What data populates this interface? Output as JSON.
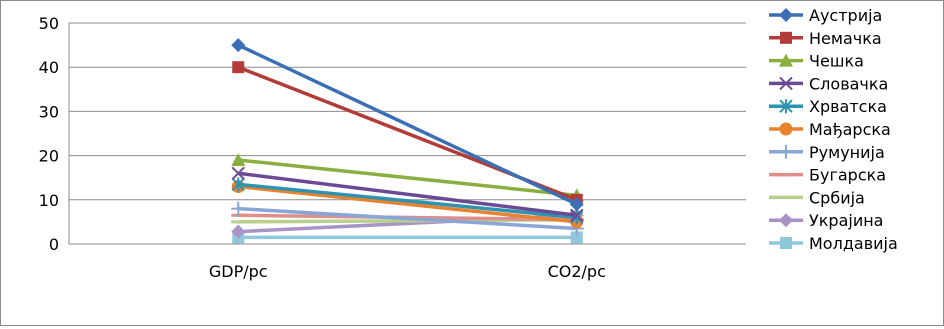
{
  "chart_data": {
    "type": "line",
    "categories": [
      "GDP/pc",
      "CO2/pc"
    ],
    "ylim": [
      0,
      50
    ],
    "yticks": [
      0,
      10,
      20,
      30,
      40,
      50
    ],
    "grid": true,
    "legend_position": "right",
    "series": [
      {
        "name": "Аустрија",
        "values": [
          45,
          9
        ],
        "color": "#3a6fb5",
        "marker": "diamond"
      },
      {
        "name": "Немачка",
        "values": [
          40,
          10
        ],
        "color": "#b33c38",
        "marker": "square"
      },
      {
        "name": "Чешка",
        "values": [
          19,
          11
        ],
        "color": "#8aae3f",
        "marker": "triangle"
      },
      {
        "name": "Словачка",
        "values": [
          16,
          6.5
        ],
        "color": "#6a4a94",
        "marker": "x"
      },
      {
        "name": "Хрватска",
        "values": [
          13.5,
          6
        ],
        "color": "#2e93b0",
        "marker": "star"
      },
      {
        "name": "Мађарска",
        "values": [
          13,
          5
        ],
        "color": "#e8822e",
        "marker": "circle"
      },
      {
        "name": "Румунија",
        "values": [
          8,
          3.5
        ],
        "color": "#8aa6d6",
        "marker": "plus"
      },
      {
        "name": "Бугарска",
        "values": [
          6.5,
          5.5
        ],
        "color": "#de8f8b",
        "marker": "dash"
      },
      {
        "name": "Србија",
        "values": [
          5,
          5.5
        ],
        "color": "#b9cf8c",
        "marker": "dash"
      },
      {
        "name": "Украјина",
        "values": [
          2.8,
          6.5
        ],
        "color": "#a993c6",
        "marker": "diamond"
      },
      {
        "name": "Молдавија",
        "values": [
          1.5,
          1.5
        ],
        "color": "#8fc8dc",
        "marker": "square"
      }
    ]
  }
}
